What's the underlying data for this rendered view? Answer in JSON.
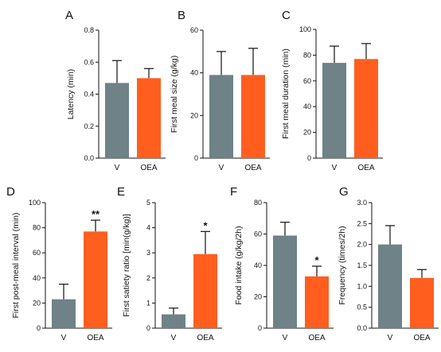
{
  "colors": {
    "vehicle": "#6E8287",
    "oea": "#FF5E1F"
  },
  "chart_data": [
    {
      "type": "bar",
      "panel": "A",
      "ylabel": "Latency  (min)",
      "categories": [
        "V",
        "OEA"
      ],
      "values": [
        0.47,
        0.5
      ],
      "errors": [
        0.14,
        0.06
      ],
      "ylim": [
        0,
        0.8
      ],
      "yticks": [
        "0.0",
        "0.2",
        "0.4",
        "0.6",
        "0.8"
      ],
      "significance": [
        "",
        ""
      ]
    },
    {
      "type": "bar",
      "panel": "B",
      "ylabel": "First meal size  (g/kg)",
      "categories": [
        "V",
        "OEA"
      ],
      "values": [
        39,
        39
      ],
      "errors": [
        11,
        12.5
      ],
      "ylim": [
        0,
        60
      ],
      "yticks": [
        "0",
        "20",
        "40",
        "60"
      ],
      "significance": [
        "",
        ""
      ]
    },
    {
      "type": "bar",
      "panel": "C",
      "ylabel": "First meal duration  (min)",
      "categories": [
        "V",
        "OEA"
      ],
      "values": [
        74,
        77
      ],
      "errors": [
        13,
        12
      ],
      "ylim": [
        0,
        100
      ],
      "yticks": [
        "0",
        "20",
        "40",
        "60",
        "80",
        "100"
      ],
      "significance": [
        "",
        ""
      ]
    },
    {
      "type": "bar",
      "panel": "D",
      "ylabel": "First post-meal interval  (min)",
      "categories": [
        "V",
        "OEA"
      ],
      "values": [
        23,
        77
      ],
      "errors": [
        12,
        9
      ],
      "ylim": [
        0,
        100
      ],
      "yticks": [
        "0",
        "20",
        "40",
        "60",
        "80",
        "100"
      ],
      "significance": [
        "",
        "**"
      ]
    },
    {
      "type": "bar",
      "panel": "E",
      "ylabel": "First satiety ratio  [min(g/kg)]",
      "categories": [
        "V",
        "OEA"
      ],
      "values": [
        0.55,
        2.95
      ],
      "errors": [
        0.25,
        0.9
      ],
      "ylim": [
        0,
        5
      ],
      "yticks": [
        "0",
        "1",
        "2",
        "3",
        "4",
        "5"
      ],
      "significance": [
        "",
        "*"
      ]
    },
    {
      "type": "bar",
      "panel": "F",
      "ylabel": "Food intake  (g/kg/2h)",
      "categories": [
        "V",
        "OEA"
      ],
      "values": [
        59,
        33
      ],
      "errors": [
        8.5,
        6.5
      ],
      "ylim": [
        0,
        80
      ],
      "yticks": [
        "0",
        "20",
        "40",
        "60",
        "80"
      ],
      "significance": [
        "",
        "*"
      ]
    },
    {
      "type": "bar",
      "panel": "G",
      "ylabel": "Frequency  (times/2h)",
      "categories": [
        "V",
        "OEA"
      ],
      "values": [
        2.0,
        1.2
      ],
      "errors": [
        0.45,
        0.2
      ],
      "ylim": [
        0,
        3.0
      ],
      "yticks": [
        "0.0",
        "0.5",
        "1.0",
        "1.5",
        "2.0",
        "2.5",
        "3.0"
      ],
      "significance": [
        "",
        ""
      ]
    }
  ]
}
